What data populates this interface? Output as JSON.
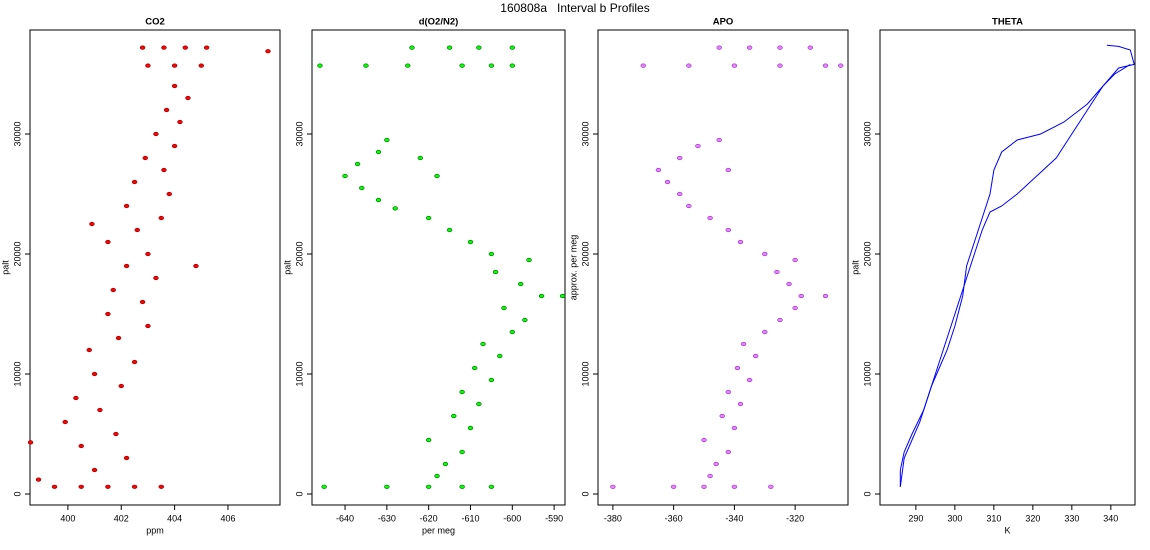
{
  "title": "160808a   Interval b Profiles",
  "chart_data": [
    {
      "type": "scatter",
      "title": "CO2",
      "xlabel": "ppm",
      "ylabel": "palt",
      "color": "#ff0000",
      "edgecolor": "#8b0000",
      "x": [
        399.5,
        400.5,
        401.5,
        402.5,
        403.5,
        398.9,
        401,
        402.2,
        400.5,
        401.8,
        399.9,
        401.2,
        400.3,
        402,
        401,
        402.5,
        400.8,
        401.9,
        403,
        401.5,
        402.8,
        401.7,
        403.3,
        402.2,
        403,
        401.5,
        402.6,
        400.9,
        403.5,
        402.2,
        403.8,
        402.5,
        403.6,
        402.9,
        404,
        403.3,
        404.2,
        403.7,
        404.5,
        404,
        403,
        404,
        405,
        402.8,
        403.6,
        404.4,
        405.2,
        407.5,
        398.6,
        404.8
      ],
      "y": [
        600,
        600,
        600,
        600,
        600,
        1200,
        2000,
        3000,
        4000,
        5000,
        6000,
        7000,
        8000,
        9000,
        10000,
        11000,
        12000,
        13000,
        14000,
        15000,
        16000,
        17000,
        18000,
        19000,
        20000,
        21000,
        22000,
        22500,
        23000,
        24000,
        25000,
        26000,
        27000,
        28000,
        29000,
        30000,
        31000,
        32000,
        33000,
        34000,
        35700,
        35700,
        35700,
        37200,
        37200,
        37200,
        37200,
        36900,
        4300,
        19000
      ],
      "xlim": [
        398.58,
        407.95
      ],
      "ylim": [
        -917,
        38667
      ],
      "xticks": [
        400,
        402,
        404,
        406
      ],
      "yticks": [
        0,
        10000,
        20000,
        30000
      ]
    },
    {
      "type": "scatter",
      "title": "d(O2/N2)",
      "xlabel": "per meg",
      "ylabel": "palt",
      "color": "#00ff00",
      "edgecolor": "#006400",
      "x": [
        -645,
        -630,
        -620,
        -612,
        -605,
        -618,
        -616,
        -612,
        -620,
        -610,
        -614,
        -608,
        -612,
        -605,
        -609,
        -603,
        -607,
        -600,
        -597,
        -602,
        -593,
        -598,
        -604,
        -596,
        -605,
        -610,
        -615,
        -620,
        -628,
        -632,
        -636,
        -640,
        -637,
        -632,
        -630,
        -622,
        -618,
        -588,
        -646,
        -635,
        -625,
        -612,
        -605,
        -600,
        -624,
        -615,
        -608,
        -600
      ],
      "y": [
        600,
        600,
        600,
        600,
        600,
        1500,
        2500,
        3500,
        4500,
        5500,
        6500,
        7500,
        8500,
        9500,
        10500,
        11500,
        12500,
        13500,
        14500,
        15500,
        16500,
        17500,
        18500,
        19500,
        20000,
        21000,
        22000,
        23000,
        23800,
        24500,
        25500,
        26500,
        27500,
        28500,
        29500,
        28000,
        26500,
        16500,
        35700,
        35700,
        35700,
        35700,
        35700,
        35700,
        37200,
        37200,
        37200,
        37200
      ],
      "xlim": [
        -647.9,
        -587.4
      ],
      "ylim": [
        -917,
        38667
      ],
      "xticks": [
        -640,
        -630,
        -620,
        -610,
        -600,
        -590
      ],
      "yticks": [
        0,
        10000,
        20000,
        30000
      ]
    },
    {
      "type": "scatter",
      "title": "APO",
      "xlabel": "",
      "ylabel": "approx. per meg",
      "color": "#ee82ee",
      "edgecolor": "#8a2be2",
      "x": [
        -380,
        -360,
        -350,
        -340,
        -328,
        -348,
        -346,
        -342,
        -350,
        -340,
        -344,
        -338,
        -342,
        -335,
        -339,
        -333,
        -337,
        -330,
        -325,
        -320,
        -318,
        -322,
        -326,
        -320,
        -330,
        -338,
        -342,
        -348,
        -355,
        -358,
        -362,
        -365,
        -358,
        -352,
        -345,
        -342,
        -310,
        -370,
        -355,
        -340,
        -325,
        -310,
        -305,
        -345,
        -335,
        -325,
        -315
      ],
      "y": [
        600,
        600,
        600,
        600,
        600,
        1500,
        2500,
        3500,
        4500,
        5500,
        6500,
        7500,
        8500,
        9500,
        10500,
        11500,
        12500,
        13500,
        14500,
        15500,
        16500,
        17500,
        18500,
        19500,
        20000,
        21000,
        22000,
        23000,
        24000,
        25000,
        26000,
        27000,
        28000,
        29000,
        29500,
        27000,
        16500,
        35700,
        35700,
        35700,
        35700,
        35700,
        35700,
        37200,
        37200,
        37200,
        37200
      ],
      "xlim": [
        -384.9,
        -302.6
      ],
      "ylim": [
        -917,
        38667
      ],
      "xticks": [
        -380,
        -360,
        -340,
        -320
      ],
      "yticks": [
        0,
        10000,
        20000,
        30000
      ]
    },
    {
      "type": "line",
      "title": "THETA",
      "xlabel": "K",
      "ylabel": "palt",
      "series": [
        {
          "color": "#0000ff",
          "x": [
            286,
            286,
            287,
            289,
            292,
            294,
            296,
            298,
            300,
            302,
            303,
            305,
            307,
            309,
            310,
            312,
            316,
            322,
            328,
            334,
            338,
            341,
            345
          ],
          "y": [
            600,
            2000,
            3500,
            5000,
            7000,
            9000,
            10500,
            12000,
            14000,
            16500,
            19000,
            21000,
            23000,
            25000,
            27000,
            28500,
            29500,
            30000,
            31000,
            32500,
            34000,
            35000,
            35800
          ]
        },
        {
          "color": "#0000ff",
          "x": [
            286,
            287,
            289,
            291,
            293,
            295,
            297,
            299,
            301,
            303,
            305,
            307,
            309,
            312,
            316,
            321,
            326,
            330,
            334,
            338,
            342,
            346,
            345,
            342,
            339
          ],
          "y": [
            600,
            3000,
            4500,
            6000,
            8000,
            10000,
            12000,
            14000,
            16000,
            18000,
            20000,
            22000,
            23500,
            24000,
            25000,
            26500,
            28000,
            30000,
            32000,
            34000,
            35500,
            35800,
            37000,
            37300,
            37400
          ]
        }
      ],
      "xlim": [
        280.8,
        346.2
      ],
      "ylim": [
        -917,
        38667
      ],
      "xticks": [
        290,
        300,
        310,
        320,
        330,
        340
      ],
      "yticks": [
        0,
        10000,
        20000,
        30000
      ]
    }
  ]
}
